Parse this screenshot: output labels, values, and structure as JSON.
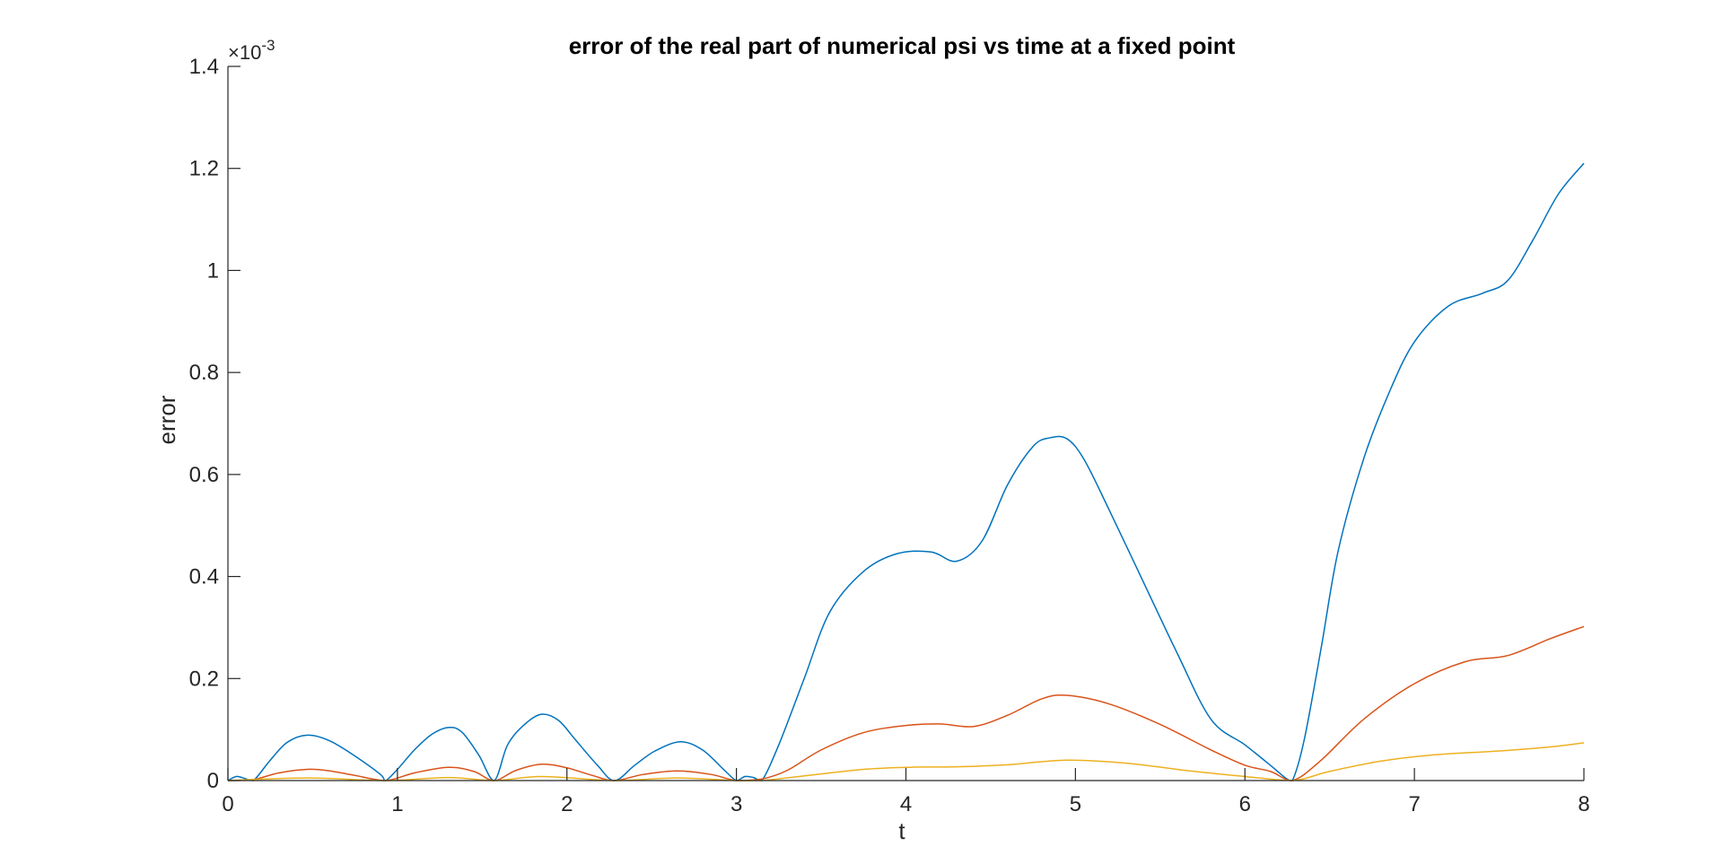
{
  "chart_data": {
    "type": "line",
    "title": "error of the real part of numerical psi vs time at a fixed point",
    "xlabel": "t",
    "ylabel": "error",
    "y_exponent_label": "×10",
    "y_exponent_power": "-3",
    "xlim": [
      0,
      8
    ],
    "ylim": [
      0,
      1.4
    ],
    "xticks": [
      0,
      1,
      2,
      3,
      4,
      5,
      6,
      7,
      8
    ],
    "xtick_labels": [
      "0",
      "1",
      "2",
      "3",
      "4",
      "5",
      "6",
      "7",
      "8"
    ],
    "yticks": [
      0,
      0.2,
      0.4,
      0.6,
      0.8,
      1.0,
      1.2,
      1.4
    ],
    "ytick_labels": [
      "0",
      "0.2",
      "0.4",
      "0.6",
      "0.8",
      "1",
      "1.2",
      "1.4"
    ],
    "grid": false,
    "legend": "none",
    "series": [
      {
        "color": "#0072BD",
        "x": [
          0,
          0.05,
          0.1,
          0.15,
          0.25,
          0.35,
          0.47,
          0.6,
          0.75,
          0.9,
          0.93,
          1.0,
          1.1,
          1.2,
          1.3,
          1.38,
          1.48,
          1.57,
          1.65,
          1.75,
          1.85,
          1.95,
          2.05,
          2.18,
          2.28,
          2.4,
          2.52,
          2.67,
          2.8,
          2.93,
          3.0,
          3.05,
          3.1,
          3.15,
          3.25,
          3.4,
          3.55,
          3.75,
          3.95,
          4.15,
          4.3,
          4.45,
          4.6,
          4.75,
          4.85,
          4.95,
          5.05,
          5.2,
          5.4,
          5.6,
          5.8,
          6.0,
          6.15,
          6.24,
          6.28,
          6.35,
          6.45,
          6.55,
          6.7,
          6.85,
          7.0,
          7.2,
          7.4,
          7.55,
          7.7,
          7.85,
          8.0
        ],
        "y": [
          0,
          0.008,
          0.004,
          0,
          0.04,
          0.075,
          0.089,
          0.078,
          0.048,
          0.012,
          0,
          0.022,
          0.06,
          0.09,
          0.104,
          0.095,
          0.05,
          0,
          0.07,
          0.11,
          0.13,
          0.118,
          0.08,
          0.03,
          0,
          0.03,
          0.058,
          0.076,
          0.06,
          0.02,
          0,
          0.008,
          0.006,
          0,
          0.07,
          0.2,
          0.33,
          0.41,
          0.445,
          0.448,
          0.43,
          0.47,
          0.58,
          0.655,
          0.672,
          0.67,
          0.63,
          0.53,
          0.39,
          0.25,
          0.12,
          0.07,
          0.03,
          0.005,
          0,
          0.08,
          0.26,
          0.45,
          0.63,
          0.76,
          0.86,
          0.93,
          0.955,
          0.98,
          1.06,
          1.15,
          1.21
        ]
      },
      {
        "color": "#D95319",
        "x": [
          0,
          0.15,
          0.3,
          0.47,
          0.6,
          0.75,
          0.93,
          1.1,
          1.3,
          1.45,
          1.57,
          1.7,
          1.85,
          2.0,
          2.15,
          2.28,
          2.45,
          2.65,
          2.85,
          3.0,
          3.15,
          3.3,
          3.5,
          3.75,
          4.0,
          4.2,
          4.4,
          4.6,
          4.8,
          4.95,
          5.2,
          5.5,
          5.8,
          6.0,
          6.15,
          6.28,
          6.45,
          6.7,
          7.0,
          7.3,
          7.55,
          7.8,
          8.0
        ],
        "y": [
          0,
          0.002,
          0.015,
          0.022,
          0.019,
          0.01,
          0,
          0.015,
          0.026,
          0.018,
          0,
          0.02,
          0.032,
          0.025,
          0.01,
          0,
          0.012,
          0.019,
          0.012,
          0,
          0.003,
          0.02,
          0.06,
          0.094,
          0.108,
          0.111,
          0.106,
          0.128,
          0.16,
          0.167,
          0.15,
          0.11,
          0.06,
          0.03,
          0.018,
          0,
          0.04,
          0.12,
          0.19,
          0.233,
          0.245,
          0.278,
          0.302
        ]
      },
      {
        "color": "#EDB120",
        "x": [
          0,
          0.47,
          0.93,
          1.3,
          1.57,
          1.85,
          2.28,
          2.65,
          3.0,
          3.15,
          3.5,
          3.75,
          4.0,
          4.3,
          4.6,
          4.95,
          5.3,
          5.7,
          6.0,
          6.28,
          6.5,
          6.8,
          7.1,
          7.5,
          7.8,
          8.0
        ],
        "y": [
          0,
          0.005,
          0,
          0.006,
          0,
          0.008,
          0,
          0.005,
          0,
          0,
          0.013,
          0.022,
          0.026,
          0.027,
          0.031,
          0.04,
          0.034,
          0.018,
          0.008,
          0,
          0.018,
          0.038,
          0.05,
          0.058,
          0.066,
          0.074
        ]
      }
    ]
  }
}
